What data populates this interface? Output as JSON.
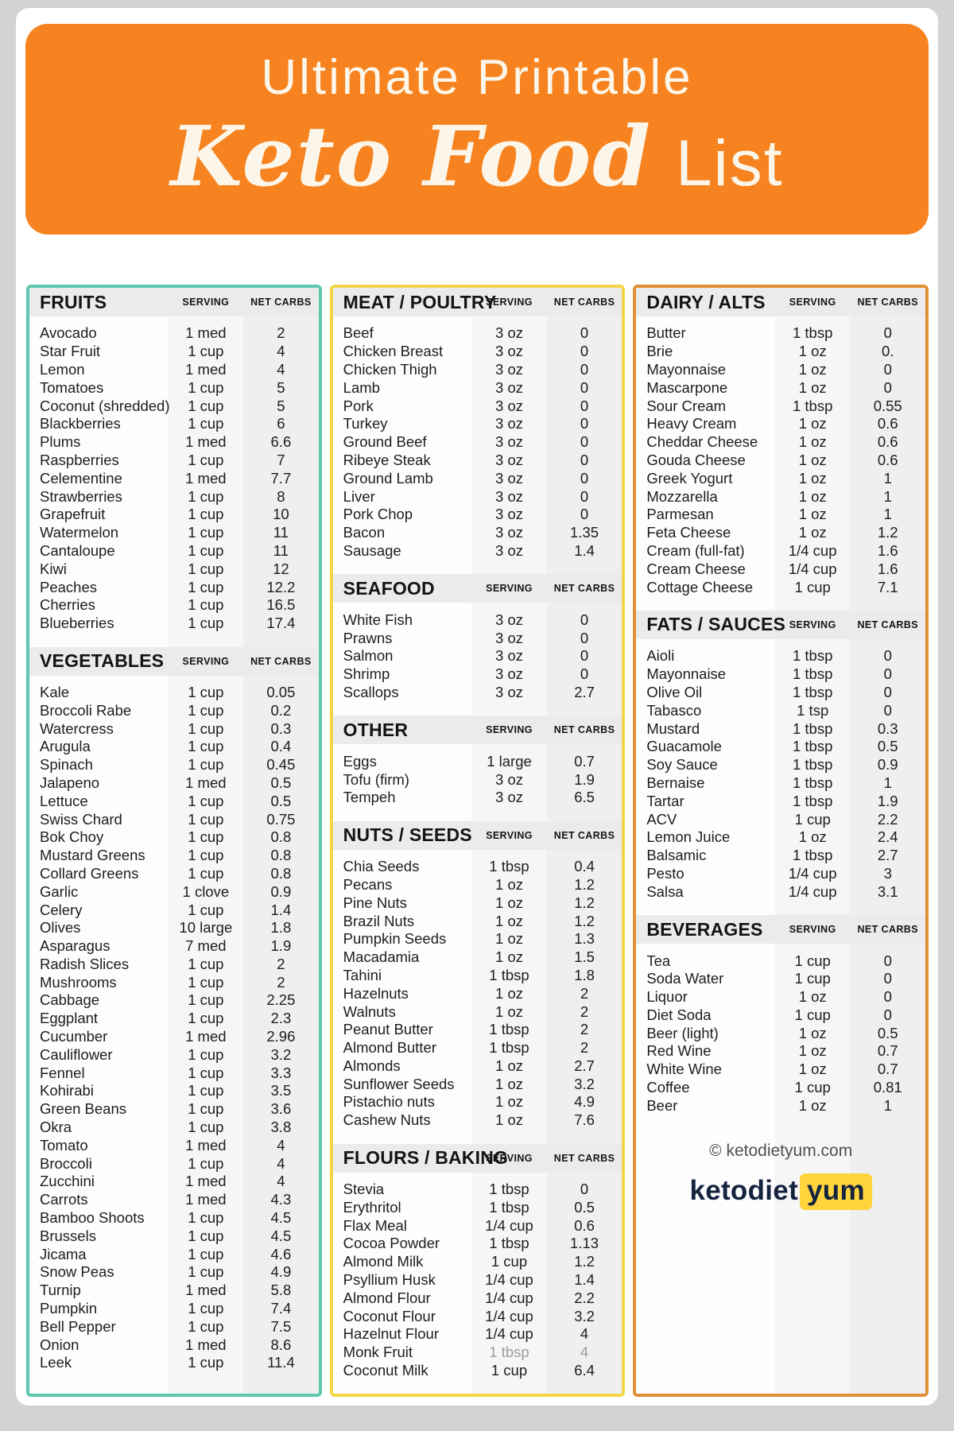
{
  "header": {
    "title_line1": "Ultimate Printable",
    "title_script": "Keto Food",
    "title_rest": "List"
  },
  "labels": {
    "serving": "SERVING",
    "net_carbs": "NET CARBS"
  },
  "colors": {
    "banner_orange": "#F6831F",
    "teal": "#5FC7AE",
    "yellow": "#F5D547",
    "orange": "#E29035",
    "logo_yellow": "#FFD43C"
  },
  "columns": [
    {
      "accent": "teal",
      "sections": [
        {
          "title": "FRUITS",
          "rows": [
            [
              "Avocado",
              "1 med",
              "2"
            ],
            [
              "Star Fruit",
              "1 cup",
              "4"
            ],
            [
              "Lemon",
              "1 med",
              "4"
            ],
            [
              "Tomatoes",
              "1 cup",
              "5"
            ],
            [
              "Coconut (shredded)",
              "1 cup",
              "5"
            ],
            [
              "Blackberries",
              "1 cup",
              "6"
            ],
            [
              "Plums",
              "1 med",
              "6.6"
            ],
            [
              "Raspberries",
              "1 cup",
              "7"
            ],
            [
              "Celementine",
              "1 med",
              "7.7"
            ],
            [
              "Strawberries",
              "1 cup",
              "8"
            ],
            [
              "Grapefruit",
              "1 cup",
              "10"
            ],
            [
              "Watermelon",
              "1 cup",
              "11"
            ],
            [
              "Cantaloupe",
              "1 cup",
              "11"
            ],
            [
              "Kiwi",
              "1 cup",
              "12"
            ],
            [
              "Peaches",
              "1 cup",
              "12.2"
            ],
            [
              "Cherries",
              "1 cup",
              "16.5"
            ],
            [
              "Blueberries",
              "1 cup",
              "17.4"
            ]
          ]
        },
        {
          "title": "VEGETABLES",
          "rows": [
            [
              "Kale",
              "1 cup",
              "0.05"
            ],
            [
              "Broccoli Rabe",
              "1 cup",
              "0.2"
            ],
            [
              "Watercress",
              "1 cup",
              "0.3"
            ],
            [
              "Arugula",
              "1 cup",
              "0.4"
            ],
            [
              "Spinach",
              "1 cup",
              "0.45"
            ],
            [
              "Jalapeno",
              "1 med",
              "0.5"
            ],
            [
              "Lettuce",
              "1 cup",
              "0.5"
            ],
            [
              "Swiss Chard",
              "1 cup",
              "0.75"
            ],
            [
              "Bok Choy",
              "1 cup",
              "0.8"
            ],
            [
              "Mustard Greens",
              "1 cup",
              "0.8"
            ],
            [
              "Collard Greens",
              "1 cup",
              "0.8"
            ],
            [
              "Garlic",
              "1 clove",
              "0.9"
            ],
            [
              "Celery",
              "1 cup",
              "1.4"
            ],
            [
              "Olives",
              "10 large",
              "1.8"
            ],
            [
              "Asparagus",
              "7 med",
              "1.9"
            ],
            [
              "Radish Slices",
              "1 cup",
              "2"
            ],
            [
              "Mushrooms",
              "1 cup",
              "2"
            ],
            [
              "Cabbage",
              "1 cup",
              "2.25"
            ],
            [
              "Eggplant",
              "1 cup",
              "2.3"
            ],
            [
              "Cucumber",
              "1 med",
              "2.96"
            ],
            [
              "Cauliflower",
              "1 cup",
              "3.2"
            ],
            [
              "Fennel",
              "1 cup",
              "3.3"
            ],
            [
              "Kohirabi",
              "1 cup",
              "3.5"
            ],
            [
              "Green Beans",
              "1 cup",
              "3.6"
            ],
            [
              "Okra",
              "1 cup",
              "3.8"
            ],
            [
              "Tomato",
              "1 med",
              "4"
            ],
            [
              "Broccoli",
              "1 cup",
              "4"
            ],
            [
              "Zucchini",
              "1 med",
              "4"
            ],
            [
              "Carrots",
              "1 med",
              "4.3"
            ],
            [
              "Bamboo Shoots",
              "1 cup",
              "4.5"
            ],
            [
              "Brussels",
              "1 cup",
              "4.5"
            ],
            [
              "Jicama",
              "1 cup",
              "4.6"
            ],
            [
              "Snow Peas",
              "1 cup",
              "4.9"
            ],
            [
              "Turnip",
              "1 med",
              "5.8"
            ],
            [
              "Pumpkin",
              "1 cup",
              "7.4"
            ],
            [
              "Bell Pepper",
              "1 cup",
              "7.5"
            ],
            [
              "Onion",
              "1 med",
              "8.6"
            ],
            [
              "Leek",
              "1 cup",
              "11.4"
            ]
          ]
        }
      ]
    },
    {
      "accent": "yellow",
      "sections": [
        {
          "title": "MEAT / POULTRY",
          "rows": [
            [
              "Beef",
              "3 oz",
              "0"
            ],
            [
              "Chicken Breast",
              "3 oz",
              "0"
            ],
            [
              "Chicken Thigh",
              "3 oz",
              "0"
            ],
            [
              "Lamb",
              "3 oz",
              "0"
            ],
            [
              "Pork",
              "3 oz",
              "0"
            ],
            [
              "Turkey",
              "3 oz",
              "0"
            ],
            [
              "Ground Beef",
              "3 oz",
              "0"
            ],
            [
              "Ribeye Steak",
              "3 oz",
              "0"
            ],
            [
              "Ground Lamb",
              "3 oz",
              "0"
            ],
            [
              "Liver",
              "3 oz",
              "0"
            ],
            [
              "Pork Chop",
              "3 oz",
              "0"
            ],
            [
              "Bacon",
              "3 oz",
              "1.35"
            ],
            [
              "Sausage",
              "3 oz",
              "1.4"
            ]
          ]
        },
        {
          "title": "SEAFOOD",
          "rows": [
            [
              "White Fish",
              "3 oz",
              "0"
            ],
            [
              "Prawns",
              "3 oz",
              "0"
            ],
            [
              "Salmon",
              "3 oz",
              "0"
            ],
            [
              "Shrimp",
              "3 oz",
              "0"
            ],
            [
              "Scallops",
              "3 oz",
              "2.7"
            ]
          ]
        },
        {
          "title": "OTHER",
          "rows": [
            [
              "Eggs",
              "1 large",
              "0.7"
            ],
            [
              "Tofu (firm)",
              "3 oz",
              "1.9"
            ],
            [
              "Tempeh",
              "3 oz",
              "6.5"
            ]
          ]
        },
        {
          "title": "NUTS / SEEDS",
          "rows": [
            [
              "Chia Seeds",
              "1 tbsp",
              "0.4"
            ],
            [
              "Pecans",
              "1 oz",
              "1.2"
            ],
            [
              "Pine Nuts",
              "1 oz",
              "1.2"
            ],
            [
              "Brazil Nuts",
              "1 oz",
              "1.2"
            ],
            [
              "Pumpkin Seeds",
              "1 oz",
              "1.3"
            ],
            [
              "Macadamia",
              "1 oz",
              "1.5"
            ],
            [
              "Tahini",
              "1 tbsp",
              "1.8"
            ],
            [
              "Hazelnuts",
              "1 oz",
              "2"
            ],
            [
              "Walnuts",
              "1 oz",
              "2"
            ],
            [
              "Peanut Butter",
              "1 tbsp",
              "2"
            ],
            [
              "Almond Butter",
              "1 tbsp",
              "2"
            ],
            [
              "Almonds",
              "1 oz",
              "2.7"
            ],
            [
              "Sunflower Seeds",
              "1 oz",
              "3.2"
            ],
            [
              "Pistachio nuts",
              "1 oz",
              "4.9"
            ],
            [
              "Cashew Nuts",
              "1 oz",
              "7.6"
            ]
          ]
        },
        {
          "title": "FLOURS / BAKING",
          "rows": [
            [
              "Stevia",
              "1 tbsp",
              "0"
            ],
            [
              "Erythritol",
              "1 tbsp",
              "0.5"
            ],
            [
              "Flax Meal",
              "1/4 cup",
              "0.6"
            ],
            [
              "Cocoa Powder",
              "1 tbsp",
              "1.13"
            ],
            [
              "Almond Milk",
              "1 cup",
              "1.2"
            ],
            [
              "Psyllium Husk",
              "1/4 cup",
              "1.4"
            ],
            [
              "Almond Flour",
              "1/4 cup",
              "2.2"
            ],
            [
              "Coconut Flour",
              "1/4 cup",
              "3.2"
            ],
            [
              "Hazelnut Flour",
              "1/4 cup",
              "4"
            ],
            [
              "Monk Fruit",
              "1 tbsp",
              "4",
              true
            ],
            [
              "Coconut Milk",
              "1 cup",
              "6.4"
            ]
          ]
        }
      ]
    },
    {
      "accent": "orange",
      "sections": [
        {
          "title": "DAIRY / ALTS",
          "rows": [
            [
              "Butter",
              "1 tbsp",
              "0"
            ],
            [
              "Brie",
              "1 oz",
              "0."
            ],
            [
              "Mayonnaise",
              "1 oz",
              "0"
            ],
            [
              "Mascarpone",
              "1 oz",
              "0"
            ],
            [
              "Sour Cream",
              "1 tbsp",
              "0.55"
            ],
            [
              "Heavy Cream",
              "1 oz",
              "0.6"
            ],
            [
              "Cheddar Cheese",
              "1 oz",
              "0.6"
            ],
            [
              "Gouda Cheese",
              "1 oz",
              "0.6"
            ],
            [
              "Greek Yogurt",
              "1 oz",
              "1"
            ],
            [
              "Mozzarella",
              "1 oz",
              "1"
            ],
            [
              "Parmesan",
              "1 oz",
              "1"
            ],
            [
              "Feta Cheese",
              "1 oz",
              "1.2"
            ],
            [
              "Cream (full-fat)",
              "1/4 cup",
              "1.6"
            ],
            [
              "Cream Cheese",
              "1/4 cup",
              "1.6"
            ],
            [
              "Cottage Cheese",
              "1 cup",
              "7.1"
            ]
          ]
        },
        {
          "title": "FATS / SAUCES",
          "rows": [
            [
              "Aioli",
              "1 tbsp",
              "0"
            ],
            [
              "Mayonnaise",
              "1 tbsp",
              "0"
            ],
            [
              "Olive Oil",
              "1 tbsp",
              "0"
            ],
            [
              "Tabasco",
              "1 tsp",
              "0"
            ],
            [
              "Mustard",
              "1 tbsp",
              "0.3"
            ],
            [
              "Guacamole",
              "1 tbsp",
              "0.5"
            ],
            [
              "Soy Sauce",
              "1 tbsp",
              "0.9"
            ],
            [
              "Bernaise",
              "1 tbsp",
              "1"
            ],
            [
              "Tartar",
              "1 tbsp",
              "1.9"
            ],
            [
              "ACV",
              "1 cup",
              "2.2"
            ],
            [
              "Lemon Juice",
              "1 oz",
              "2.4"
            ],
            [
              "Balsamic",
              "1 tbsp",
              "2.7"
            ],
            [
              "Pesto",
              "1/4 cup",
              "3"
            ],
            [
              "Salsa",
              "1/4 cup",
              "3.1"
            ]
          ]
        },
        {
          "title": "BEVERAGES",
          "rows": [
            [
              "Tea",
              "1 cup",
              "0"
            ],
            [
              "Soda Water",
              "1 cup",
              "0"
            ],
            [
              "Liquor",
              "1 oz",
              "0"
            ],
            [
              "Diet Soda",
              "1 cup",
              "0"
            ],
            [
              "Beer (light)",
              "1 oz",
              "0.5"
            ],
            [
              "Red Wine",
              "1 oz",
              "0.7"
            ],
            [
              "White Wine",
              "1 oz",
              "0.7"
            ],
            [
              "Coffee",
              "1 cup",
              "0.81"
            ],
            [
              "Beer",
              "1 oz",
              "1"
            ]
          ]
        }
      ],
      "footer": {
        "copyright": "© ketodietyum.com",
        "logo_part1": "ketodiet",
        "logo_part2": "yum"
      }
    }
  ]
}
